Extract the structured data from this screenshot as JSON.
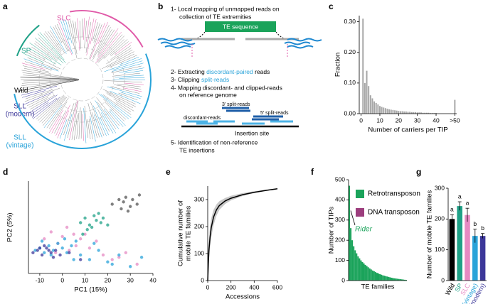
{
  "panel_labels": [
    "a",
    "b",
    "c",
    "d",
    "e",
    "f",
    "g"
  ],
  "panel_a": {
    "groups": [
      {
        "lines": [
          "SLC"
        ],
        "color": "#e05aa8"
      },
      {
        "lines": [
          "SP"
        ],
        "color": "#1fa187"
      },
      {
        "lines": [
          "Wild"
        ],
        "color": "#000000"
      },
      {
        "lines": [
          "SLL",
          "(modern)"
        ],
        "color": "#3c3799"
      },
      {
        "lines": [
          "SLL",
          "(vintage)"
        ],
        "color": "#29a3d9"
      }
    ]
  },
  "panel_b": {
    "step1": [
      "1- Local mapping of unmapped reads on",
      "collection of TE extremities"
    ],
    "te_sequence": "TE sequence",
    "step2": [
      "2- Extracting ",
      "discordant-paired",
      " reads"
    ],
    "step3": [
      "3- Clipping ",
      "split-reads"
    ],
    "step4": [
      "4- Mapping discordant- and clipped-reads",
      "on reference genome"
    ],
    "split_3": "3' split-reads",
    "split_5": "5' split-reads",
    "discordant": "discordant-reads",
    "insertion_site": "Insertion site",
    "step5": [
      "5- Identification of non-reference",
      "TE insertions"
    ]
  },
  "chart_data": [
    {
      "type": "bar",
      "xlabel": "Number of carriers per TIP",
      "ylabel": "Fraction",
      "x": [
        1,
        2,
        3,
        4,
        5,
        6,
        7,
        8,
        9,
        10,
        11,
        12,
        13,
        14,
        15,
        16,
        17,
        18,
        19,
        20,
        21,
        22,
        23,
        24,
        25,
        26,
        27,
        28,
        29,
        30,
        31,
        32,
        33,
        34,
        35,
        36,
        37,
        38,
        39,
        40,
        50
      ],
      "values": [
        0.31,
        0.1,
        0.14,
        0.09,
        0.06,
        0.05,
        0.04,
        0.035,
        0.03,
        0.025,
        0.022,
        0.02,
        0.018,
        0.016,
        0.014,
        0.013,
        0.012,
        0.011,
        0.01,
        0.009,
        0.008,
        0.008,
        0.007,
        0.007,
        0.006,
        0.006,
        0.005,
        0.005,
        0.005,
        0.004,
        0.004,
        0.004,
        0.003,
        0.003,
        0.003,
        0.003,
        0.002,
        0.002,
        0.002,
        0.002,
        0.045
      ],
      "color": "#a6a6a6",
      "xlim": [
        -1,
        51
      ],
      "xticks": [
        0,
        10,
        20,
        30,
        40,
        {
          "value": 50,
          "label": ">50"
        }
      ],
      "ylim": [
        0,
        0.32
      ],
      "yticks": [
        {
          "value": 0,
          "label": "0.00"
        },
        {
          "value": 0.1,
          "label": "0.10"
        },
        {
          "value": 0.2,
          "label": "0.20"
        },
        {
          "value": 0.3,
          "label": "0.30"
        }
      ]
    },
    {
      "type": "scatter",
      "xlabel": "PC1 (15%)",
      "ylabel": "PC2 (5%)",
      "xlim": [
        -15,
        40
      ],
      "xticks": [
        -10,
        0,
        10,
        20,
        30,
        40
      ],
      "ylim": [
        -12,
        28
      ],
      "series": [
        {
          "color": "#e68ac3",
          "x": [
            -8,
            -5,
            -2,
            0,
            3,
            5,
            8,
            12,
            15,
            18,
            22,
            28,
            33,
            2,
            6,
            -3,
            10,
            25
          ],
          "values": [
            3,
            6,
            1,
            4,
            -2,
            5,
            3,
            -1,
            2,
            -4,
            -6,
            -3,
            -8,
            8,
            0,
            -3,
            5,
            -5
          ]
        },
        {
          "color": "#29a3d9",
          "x": [
            -12,
            -10,
            -8,
            -6,
            -4,
            -2,
            0,
            2,
            4,
            6,
            8,
            12,
            16,
            20,
            25,
            30,
            35,
            -9,
            -5,
            1,
            5,
            14,
            22
          ],
          "values": [
            -2,
            -1,
            -3,
            0,
            -2,
            1,
            -1,
            -3,
            0,
            2,
            -4,
            -6,
            -2,
            -7,
            -4,
            -9,
            -5,
            2,
            -4,
            3,
            -6,
            1,
            -8
          ]
        },
        {
          "color": "#3c3799",
          "x": [
            -13,
            -11,
            -9,
            -7,
            -5,
            -3,
            -1,
            -10,
            -6,
            -8,
            -4,
            3,
            8
          ],
          "values": [
            -3,
            -2,
            -4,
            -1,
            -3,
            -2,
            -4,
            -1,
            -2,
            0,
            -5,
            -3,
            -6
          ]
        },
        {
          "color": "#1fa187",
          "x": [
            8,
            10,
            12,
            14,
            15,
            16,
            18,
            11,
            13,
            17,
            9,
            20
          ],
          "values": [
            10,
            12,
            9,
            13,
            11,
            14,
            12,
            7,
            8,
            10,
            5,
            9
          ]
        },
        {
          "color": "#555555",
          "x": [
            22,
            25,
            27,
            28,
            30,
            31,
            33,
            34,
            26,
            29
          ],
          "values": [
            18,
            20,
            19,
            21,
            17,
            20,
            18,
            22,
            16,
            15
          ]
        }
      ]
    },
    {
      "type": "line",
      "xlabel": "Accessions",
      "ylabel": [
        "Cumulative number of",
        "mobile TE families"
      ],
      "x": [
        0,
        5,
        10,
        20,
        30,
        50,
        75,
        100,
        150,
        200,
        300,
        400,
        500,
        600
      ],
      "values": [
        0,
        60,
        110,
        160,
        195,
        235,
        262,
        278,
        295,
        305,
        318,
        327,
        334,
        340
      ],
      "lower": [
        0,
        30,
        70,
        120,
        160,
        205,
        240,
        262,
        284,
        297,
        313,
        324,
        332,
        340
      ],
      "upper": [
        0,
        100,
        150,
        200,
        230,
        262,
        282,
        294,
        306,
        314,
        324,
        331,
        337,
        341
      ],
      "color": "#000000",
      "band_color": "#c8c8c8",
      "xlim": [
        0,
        600
      ],
      "xticks": [
        0,
        200,
        400,
        600
      ],
      "ylim": [
        0,
        350
      ],
      "yticks": [
        0,
        100,
        200,
        300
      ]
    },
    {
      "type": "bar",
      "xlabel": "TE families",
      "ylabel": "Number of TIPs",
      "values": [
        470,
        260,
        200,
        170,
        150,
        135,
        120,
        110,
        100,
        92,
        85,
        78,
        72,
        66,
        60,
        55,
        50,
        46,
        42,
        38,
        35,
        32,
        29,
        26,
        24,
        22,
        20,
        18,
        16,
        14,
        12,
        11,
        10,
        9,
        8,
        7,
        6,
        5,
        4,
        3
      ],
      "color": "#1aa35a",
      "ylim": [
        0,
        500
      ],
      "yticks": [
        0,
        100,
        200,
        300,
        400,
        500
      ],
      "legend": [
        {
          "name": "Retrotransposon",
          "color": "#1aa35a"
        },
        {
          "name": "DNA transposon",
          "color": "#9c3d7d"
        }
      ],
      "annotation": "Rider"
    },
    {
      "type": "bar",
      "ylabel": "Number of mobile TE families",
      "categories": [
        "Wild",
        "SP",
        "SLC",
        "SLL(vintage)",
        "SLL(modern)"
      ],
      "values": [
        200,
        242,
        213,
        145,
        145
      ],
      "errors": [
        14,
        14,
        22,
        22,
        8
      ],
      "letters": [
        "a",
        "a",
        "a",
        "b",
        "b"
      ],
      "colors": [
        "#000000",
        "#1fa187",
        "#e68ac3",
        "#29a3d9",
        "#3c3799"
      ],
      "ylim": [
        0,
        300
      ],
      "yticks": [
        0,
        100,
        200,
        300
      ]
    }
  ]
}
